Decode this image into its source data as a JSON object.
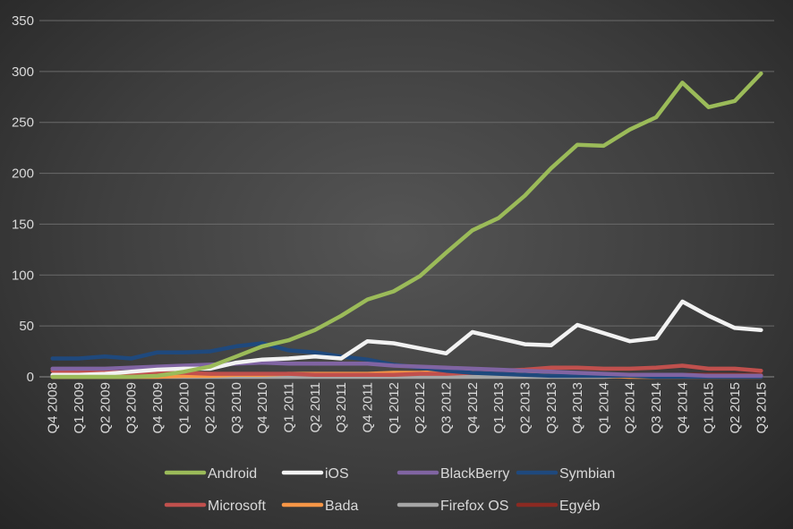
{
  "chart_data": {
    "type": "line",
    "title": "",
    "xlabel": "",
    "ylabel": "",
    "ylim": [
      0,
      350
    ],
    "yticks": [
      0,
      50,
      100,
      150,
      200,
      250,
      300,
      350
    ],
    "grid": true,
    "legend_position": "bottom",
    "categories": [
      "Q4 2008",
      "Q1 2009",
      "Q2 2009",
      "Q3 2009",
      "Q4 2009",
      "Q1 2010",
      "Q2 2010",
      "Q3 2010",
      "Q4 2010",
      "Q1 2011",
      "Q2 2011",
      "Q3 2011",
      "Q4 2011",
      "Q1 2012",
      "Q2 2012",
      "Q3 2012",
      "Q4 2012",
      "Q1 2013",
      "Q2 2013",
      "Q3 2013",
      "Q4 2013",
      "Q1 2014",
      "Q2 2014",
      "Q3 2014",
      "Q4 2014",
      "Q1 2015",
      "Q2 2015",
      "Q3 2015"
    ],
    "series": [
      {
        "name": "Egyéb",
        "color": "#8b2a22",
        "values": [
          2,
          2,
          2,
          2,
          2,
          2,
          2,
          2,
          2,
          2,
          2,
          2,
          2,
          2,
          2,
          2,
          2,
          2,
          2,
          2,
          2,
          2,
          2,
          2,
          2,
          2,
          2,
          2
        ]
      },
      {
        "name": "Firefox OS",
        "color": "#a6a6a6",
        "values": [
          0,
          0,
          0,
          0,
          0,
          0,
          0,
          0,
          0,
          0,
          0,
          0,
          0,
          0,
          0,
          0,
          0,
          0,
          0,
          0,
          0,
          0,
          1,
          1,
          1,
          1,
          1,
          1
        ]
      },
      {
        "name": "Bada",
        "color": "#f79646",
        "values": [
          0,
          0,
          0,
          0,
          0,
          1,
          1,
          2,
          2,
          3,
          3,
          3,
          3,
          4,
          4,
          5,
          5,
          4,
          3,
          2,
          1,
          1,
          0,
          0,
          0,
          0,
          0,
          0
        ]
      },
      {
        "name": "Microsoft",
        "color": "#c0504d",
        "values": [
          6,
          5,
          5,
          4,
          4,
          4,
          3,
          3,
          3,
          3,
          2,
          2,
          2,
          2,
          3,
          3,
          4,
          6,
          7,
          9,
          9,
          8,
          8,
          9,
          11,
          8,
          8,
          6
        ]
      },
      {
        "name": "Symbian",
        "color": "#1f497d",
        "values": [
          18,
          18,
          20,
          18,
          24,
          24,
          25,
          30,
          33,
          26,
          24,
          20,
          17,
          12,
          9,
          6,
          4,
          3,
          2,
          1,
          1,
          1,
          1,
          0,
          0,
          0,
          0,
          0
        ]
      },
      {
        "name": "BlackBerry",
        "color": "#8064a2",
        "values": [
          8,
          8,
          8,
          9,
          10,
          11,
          12,
          13,
          14,
          13,
          13,
          13,
          13,
          11,
          10,
          9,
          8,
          7,
          6,
          5,
          4,
          3,
          2,
          2,
          2,
          1,
          1,
          1
        ]
      },
      {
        "name": "iOS",
        "color": "#f2f2f2",
        "values": [
          2,
          2,
          3,
          5,
          7,
          8,
          8,
          14,
          17,
          18,
          20,
          18,
          35,
          33,
          28,
          23,
          44,
          38,
          32,
          31,
          51,
          43,
          35,
          38,
          74,
          60,
          48,
          46
        ]
      },
      {
        "name": "Android",
        "color": "#9bbb59",
        "values": [
          0,
          0,
          0,
          0,
          1,
          5,
          10,
          20,
          30,
          36,
          46,
          60,
          76,
          84,
          99,
          122,
          144,
          156,
          178,
          205,
          228,
          227,
          243,
          255,
          289,
          265,
          271,
          298
        ]
      }
    ]
  },
  "legend": [
    {
      "name": "Android",
      "color": "#9bbb59"
    },
    {
      "name": "iOS",
      "color": "#f2f2f2"
    },
    {
      "name": "BlackBerry",
      "color": "#8064a2"
    },
    {
      "name": "Symbian",
      "color": "#1f497d"
    },
    {
      "name": "Microsoft",
      "color": "#c0504d"
    },
    {
      "name": "Bada",
      "color": "#f79646"
    },
    {
      "name": "Firefox OS",
      "color": "#a6a6a6"
    },
    {
      "name": "Egyéb",
      "color": "#8b2a22"
    }
  ]
}
